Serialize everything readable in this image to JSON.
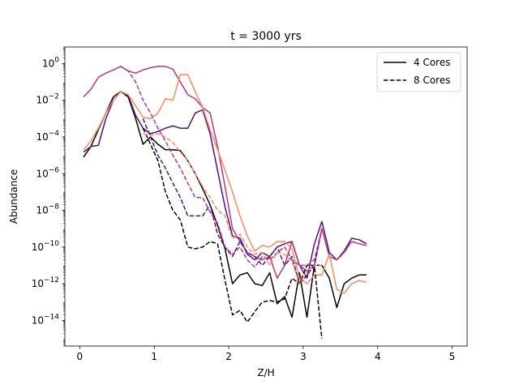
{
  "chart_data": {
    "type": "line",
    "title": "t = 3000 yrs",
    "xlabel": "Z/H",
    "ylabel": "Abundance",
    "yscale": "log",
    "xlim": [
      -0.2,
      5.2
    ],
    "ylim": [
      4e-16,
      8
    ],
    "xticks": [
      0,
      1,
      2,
      3,
      4,
      5
    ],
    "xtick_labels": [
      "0",
      "1",
      "2",
      "3",
      "4",
      "5"
    ],
    "ytick_exponents": [
      0,
      -2,
      -4,
      -6,
      -8,
      -10,
      -12,
      -14
    ],
    "ytick_base": "10",
    "grid": false,
    "legend": {
      "placement": "top-right",
      "entries": [
        {
          "label": "4 Cores",
          "style": "solid"
        },
        {
          "label": "8 Cores",
          "style": "dashed"
        }
      ]
    },
    "series": [
      {
        "color": "#000004",
        "style": "solid",
        "x": [
          0.05,
          0.15,
          0.25,
          0.35,
          0.45,
          0.55,
          0.65,
          0.75,
          0.85,
          0.95,
          1.05,
          1.15,
          1.25,
          1.35,
          1.45,
          1.55,
          1.65,
          1.75,
          1.85,
          1.95,
          2.05,
          2.15,
          2.25,
          2.35,
          2.45,
          2.55,
          2.65,
          2.75,
          2.85,
          2.95,
          3.05,
          3.15,
          3.25,
          3.35,
          3.45,
          3.55,
          3.65,
          3.75,
          3.85
        ],
        "y": [
          8e-06,
          3e-05,
          0.00025,
          0.002,
          0.015,
          0.03,
          0.015,
          0.001,
          4e-05,
          0.0001,
          4e-05,
          2e-05,
          2e-05,
          1.8e-05,
          5e-06,
          1e-06,
          1.5e-07,
          2e-08,
          1.5e-09,
          8e-11,
          1e-12,
          3e-12,
          4e-12,
          1e-12,
          8e-13,
          4e-12,
          8e-14,
          2e-13,
          1.5e-14,
          4e-12,
          1.5e-14,
          1e-11,
          1e-11,
          2e-12,
          5e-14,
          1e-12,
          2e-12,
          3e-12,
          3e-12
        ]
      },
      {
        "color": "#51127c",
        "style": "solid",
        "x": [
          0.05,
          0.15,
          0.25,
          0.35,
          0.45,
          0.55,
          0.65,
          0.75,
          0.85,
          0.95,
          1.05,
          1.15,
          1.25,
          1.35,
          1.45,
          1.55,
          1.65,
          1.75,
          1.85,
          1.95,
          2.05,
          2.15,
          2.25,
          2.35,
          2.45,
          2.55,
          2.65,
          2.75,
          2.85,
          2.95,
          3.05,
          3.15,
          3.25,
          3.35,
          3.45,
          3.55,
          3.65,
          3.75,
          3.85
        ],
        "y": [
          1.5e-05,
          3e-05,
          3.5e-05,
          0.001,
          0.01,
          0.03,
          0.018,
          0.0015,
          0.0003,
          0.00015,
          0.0002,
          0.0003,
          0.0004,
          0.0003,
          0.0003,
          0.002,
          0.003,
          0.00015,
          1.5e-06,
          1.5e-08,
          4e-10,
          3e-10,
          4e-11,
          2e-11,
          5e-11,
          3e-11,
          1e-10,
          1.5e-10,
          2e-10,
          1e-11,
          2e-12,
          1.5e-10,
          2.5e-09,
          5e-11,
          2e-11,
          6e-11,
          3e-10,
          2.5e-10,
          1.5e-10
        ]
      },
      {
        "color": "#b73779",
        "style": "solid",
        "x": [
          0.05,
          0.15,
          0.25,
          0.35,
          0.45,
          0.55,
          0.65,
          0.75,
          0.85,
          0.95,
          1.05,
          1.15,
          1.25,
          1.35,
          1.45,
          1.55,
          1.65,
          1.75,
          1.85,
          1.95,
          2.05,
          2.15,
          2.25,
          2.35,
          2.45,
          2.55,
          2.65,
          2.75,
          2.85,
          2.95,
          3.05,
          3.15,
          3.25,
          3.35,
          3.45,
          3.55,
          3.65,
          3.75,
          3.85
        ],
        "y": [
          0.015,
          0.04,
          0.18,
          0.3,
          0.45,
          0.7,
          0.4,
          0.3,
          0.45,
          0.6,
          0.7,
          0.7,
          0.5,
          0.1,
          0.02,
          0.012,
          0.004,
          0.002,
          3e-05,
          2e-07,
          1e-09,
          2e-10,
          5e-11,
          3e-11,
          2e-11,
          3e-11,
          2e-12,
          1e-11,
          2e-10,
          1e-11,
          5e-12,
          1e-11,
          1e-09,
          3e-11,
          2e-11,
          5e-11,
          2e-10,
          1.5e-10,
          1.2e-10
        ]
      },
      {
        "color": "#fc8961",
        "style": "solid",
        "x": [
          0.05,
          0.15,
          0.25,
          0.35,
          0.45,
          0.55,
          0.65,
          0.75,
          0.85,
          0.95,
          1.05,
          1.15,
          1.25,
          1.35,
          1.45,
          1.55,
          1.65,
          1.75,
          1.85,
          1.95,
          2.05,
          2.15,
          2.25,
          2.35,
          2.45,
          2.55,
          2.65,
          2.75,
          2.85,
          2.95,
          3.05,
          3.15,
          3.25,
          3.35,
          3.45,
          3.55,
          3.65,
          3.75,
          3.85
        ],
        "y": [
          2e-05,
          6e-05,
          0.0003,
          0.002,
          0.01,
          0.03,
          0.02,
          0.005,
          0.0012,
          0.001,
          0.002,
          0.012,
          0.01,
          0.25,
          0.25,
          0.03,
          0.004,
          0.00025,
          2e-05,
          1.5e-06,
          1e-07,
          5e-09,
          4e-10,
          6e-11,
          1.2e-10,
          1e-10,
          2e-10,
          2e-10,
          8e-11,
          2e-12,
          1e-12,
          3e-12,
          3e-12,
          4e-11,
          5e-13,
          3e-13,
          1e-12,
          1.5e-12,
          1.2e-12
        ]
      },
      {
        "color": "#000004",
        "style": "dashed",
        "x": [
          0.85,
          0.95,
          1.05,
          1.15,
          1.25,
          1.35,
          1.45,
          1.55,
          1.65,
          1.75,
          1.85,
          1.95,
          2.05,
          2.15,
          2.25,
          2.35,
          2.45,
          2.55,
          2.65,
          2.75,
          2.85,
          2.95,
          3.05,
          3.15,
          3.25
        ],
        "y": [
          0.0003,
          4e-05,
          5e-06,
          1e-07,
          1e-08,
          3e-09,
          1e-10,
          8e-11,
          1e-10,
          2e-10,
          1.5e-10,
          1.5e-12,
          2e-14,
          3.5e-14,
          8e-15,
          3e-14,
          1e-13,
          1.2e-13,
          1e-13,
          1.5e-13,
          2e-12,
          1e-12,
          1e-11,
          1e-11,
          1e-15
        ]
      },
      {
        "color": "#51127c",
        "style": "dashed",
        "x": [
          0.85,
          0.95,
          1.05,
          1.15,
          1.25,
          1.35,
          1.45,
          1.55,
          1.65,
          1.75,
          1.85,
          1.95,
          2.05,
          2.15,
          2.25,
          2.35,
          2.45,
          2.55,
          2.65,
          2.75,
          2.85,
          2.95,
          3.05,
          3.15,
          3.25
        ],
        "y": [
          0.001,
          0.0001,
          1e-05,
          2e-06,
          3e-07,
          5e-08,
          5e-09,
          5e-09,
          5e-09,
          2e-08,
          5e-10,
          1e-10,
          3e-11,
          2e-10,
          5e-11,
          3e-11,
          1e-11,
          3e-11,
          1e-10,
          1e-11,
          3e-11,
          1e-12,
          3e-12,
          1e-11,
          1e-09
        ]
      },
      {
        "color": "#b73779",
        "style": "dashed",
        "x": [
          0.55,
          0.65,
          0.75,
          0.85,
          0.95,
          1.05,
          1.15,
          1.25,
          1.35,
          1.45,
          1.55,
          1.65,
          1.75,
          1.85,
          1.95,
          2.05,
          2.15,
          2.25,
          2.35,
          2.45,
          2.55,
          2.65,
          2.75,
          2.85,
          2.95,
          3.05,
          3.15,
          3.25
        ],
        "y": [
          0.7,
          0.4,
          0.1,
          0.01,
          0.002,
          0.0003,
          6e-05,
          1e-05,
          2e-06,
          3e-07,
          5e-08,
          5e-08,
          8e-09,
          2e-09,
          1e-10,
          4e-11,
          1e-10,
          2e-11,
          8e-12,
          3e-11,
          2e-11,
          5e-11,
          1e-10,
          2e-11,
          1e-11,
          1e-11,
          2e-11,
          1e-09
        ]
      },
      {
        "color": "#fc8961",
        "style": "dashed",
        "x": [
          0.85,
          0.95,
          1.05,
          1.15,
          1.25,
          1.35,
          1.45,
          1.55,
          1.65,
          1.75,
          1.85,
          1.95,
          2.05,
          2.15,
          2.25,
          2.35,
          2.45,
          2.55,
          2.65,
          2.75,
          2.85,
          2.95,
          3.05,
          3.15,
          3.25
        ],
        "y": [
          0.00015,
          0.00012,
          0.00015,
          0.0001,
          5e-05,
          1.5e-05,
          5e-06,
          1e-06,
          2e-07,
          5e-08,
          1e-08,
          5e-09,
          3e-10,
          5e-10,
          1e-10,
          4e-11,
          5e-11,
          1e-11,
          5e-11,
          4e-11,
          1.5e-11,
          1e-12,
          5e-12,
          1e-11,
          1e-11
        ]
      }
    ]
  }
}
